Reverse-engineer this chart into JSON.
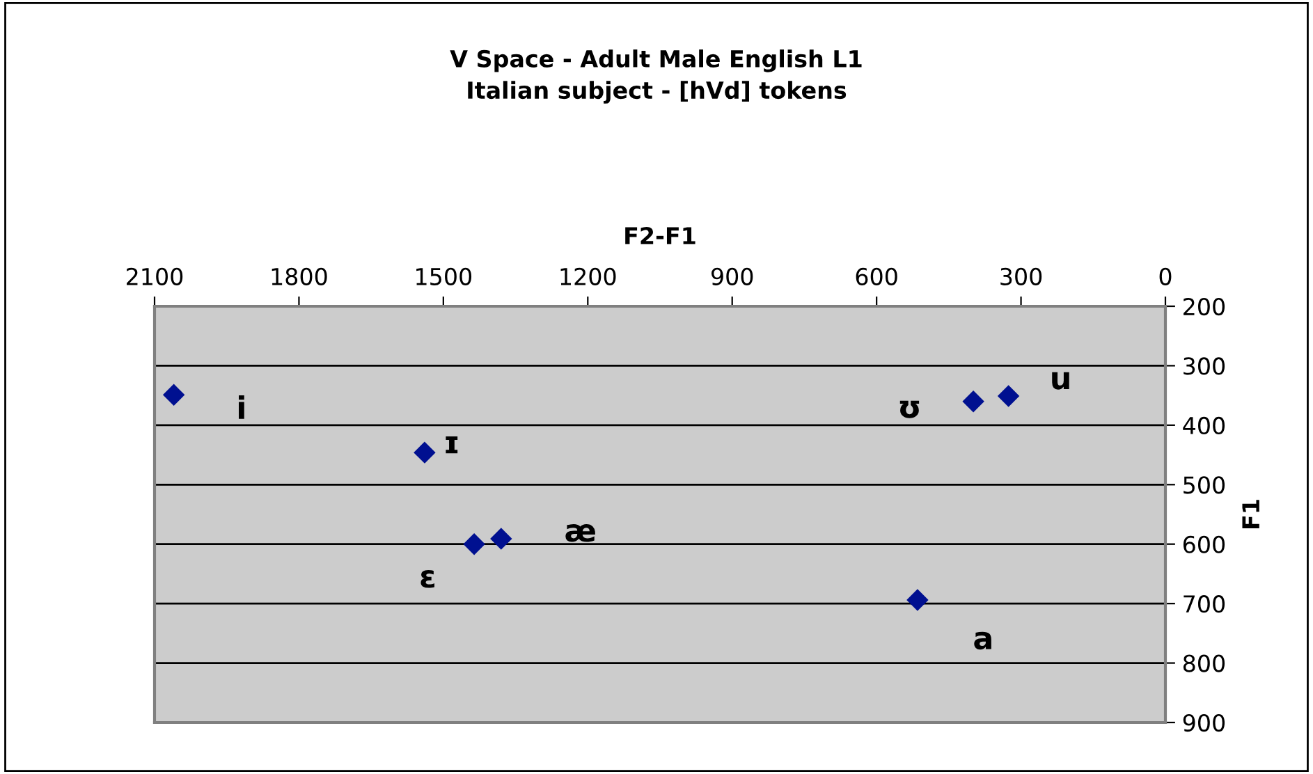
{
  "chart_data": {
    "type": "scatter",
    "title": "V Space - Adult Male English L1\nItalian subject - [hVd] tokens",
    "xlabel": "F2-F1",
    "ylabel": "F1",
    "x": [
      2060,
      1539,
      1436,
      1380,
      515,
      399,
      326
    ],
    "series": [
      {
        "color": "#001090",
        "values": [
          349,
          446,
          600,
          591,
          694,
          360,
          351
        ]
      }
    ],
    "marker": "diamond",
    "grid": "y",
    "xlim": [
      2100,
      0
    ],
    "xticks": [
      2100,
      1800,
      1500,
      1200,
      900,
      600,
      300,
      0
    ],
    "ylim": [
      900,
      200
    ],
    "yticks": [
      200,
      300,
      400,
      500,
      600,
      700,
      800,
      900
    ],
    "annotations": [
      {
        "text": "i",
        "x": 2060,
        "y": 349
      },
      {
        "text": "ɪ",
        "x": 1539,
        "y": 446
      },
      {
        "text": "ɛ",
        "x": 1436,
        "y": 600
      },
      {
        "text": "æ",
        "x": 1380,
        "y": 591
      },
      {
        "text": "a",
        "x": 515,
        "y": 694
      },
      {
        "text": "ʊ",
        "x": 399,
        "y": 360
      },
      {
        "text": "u",
        "x": 326,
        "y": 351
      }
    ]
  }
}
